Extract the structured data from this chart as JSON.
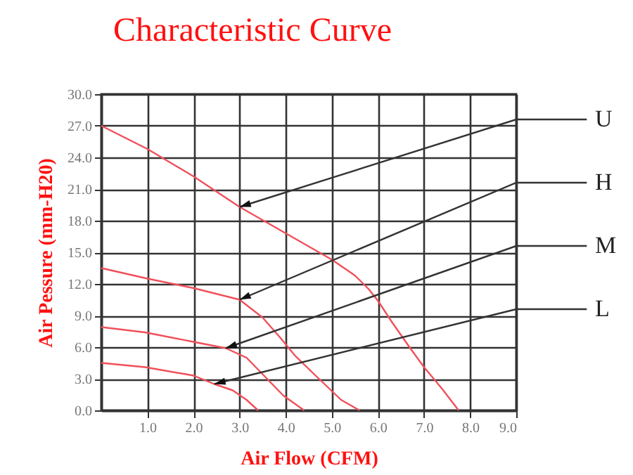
{
  "chart_data": {
    "type": "line",
    "title": "Characteristic Curve",
    "xlabel": "Air Flow (CFM)",
    "ylabel": "Air Pessure (mm-H20)",
    "xlim": [
      0,
      9
    ],
    "xticks": [
      {
        "value": 1,
        "label": "1.0"
      },
      {
        "value": 2,
        "label": "2.0"
      },
      {
        "value": 3,
        "label": "3.0"
      },
      {
        "value": 4,
        "label": "4.0"
      },
      {
        "value": 5,
        "label": "5.0"
      },
      {
        "value": 6,
        "label": "6.0"
      },
      {
        "value": 7,
        "label": "7.0"
      },
      {
        "value": 8,
        "label": "8.0"
      },
      {
        "value": 9,
        "label": "9.0"
      }
    ],
    "ylim": [
      0,
      30
    ],
    "yticks": [
      {
        "value": 0,
        "label": "0.0"
      },
      {
        "value": 3,
        "label": "3.0"
      },
      {
        "value": 6,
        "label": "6.0"
      },
      {
        "value": 9,
        "label": "9.0"
      },
      {
        "value": 12,
        "label": "12.0"
      },
      {
        "value": 15,
        "label": "15.0"
      },
      {
        "value": 18,
        "label": "18.0"
      },
      {
        "value": 21,
        "label": "21.0"
      },
      {
        "value": 24,
        "label": "24.0"
      },
      {
        "value": 27,
        "label": "27.0"
      },
      {
        "value": 30,
        "label": "30.0"
      }
    ],
    "grid": true,
    "legend": false,
    "series": [
      {
        "name": "U",
        "color": "#f0505a",
        "x": [
          0,
          1,
          2,
          3,
          4,
          5,
          5.5,
          5.8,
          6,
          6.3,
          6.7,
          7,
          7.4,
          7.75
        ],
        "values": [
          27,
          24.8,
          22.2,
          19.3,
          16.8,
          14.3,
          12.8,
          11.5,
          10.4,
          8.4,
          5.9,
          4.1,
          2,
          0
        ]
      },
      {
        "name": "H",
        "color": "#f0505a",
        "x": [
          0,
          1,
          2,
          3,
          3.5,
          3.9,
          4.2,
          4.6,
          5.2,
          5.6
        ],
        "values": [
          13.5,
          12.5,
          11.6,
          10.5,
          8.8,
          6.8,
          5.2,
          3.5,
          1,
          0
        ]
      },
      {
        "name": "M",
        "color": "#f0505a",
        "x": [
          0,
          0.95,
          2,
          2.7,
          3.15,
          3.55,
          3.95,
          4.4
        ],
        "values": [
          7.9,
          7.4,
          6.5,
          5.9,
          5,
          3.2,
          1.4,
          0
        ]
      },
      {
        "name": "L",
        "color": "#f0505a",
        "x": [
          0,
          0.95,
          2,
          2.45,
          2.85,
          3.15,
          3.4
        ],
        "values": [
          4.5,
          4.1,
          3.3,
          2.5,
          1.9,
          1,
          0
        ]
      }
    ]
  }
}
